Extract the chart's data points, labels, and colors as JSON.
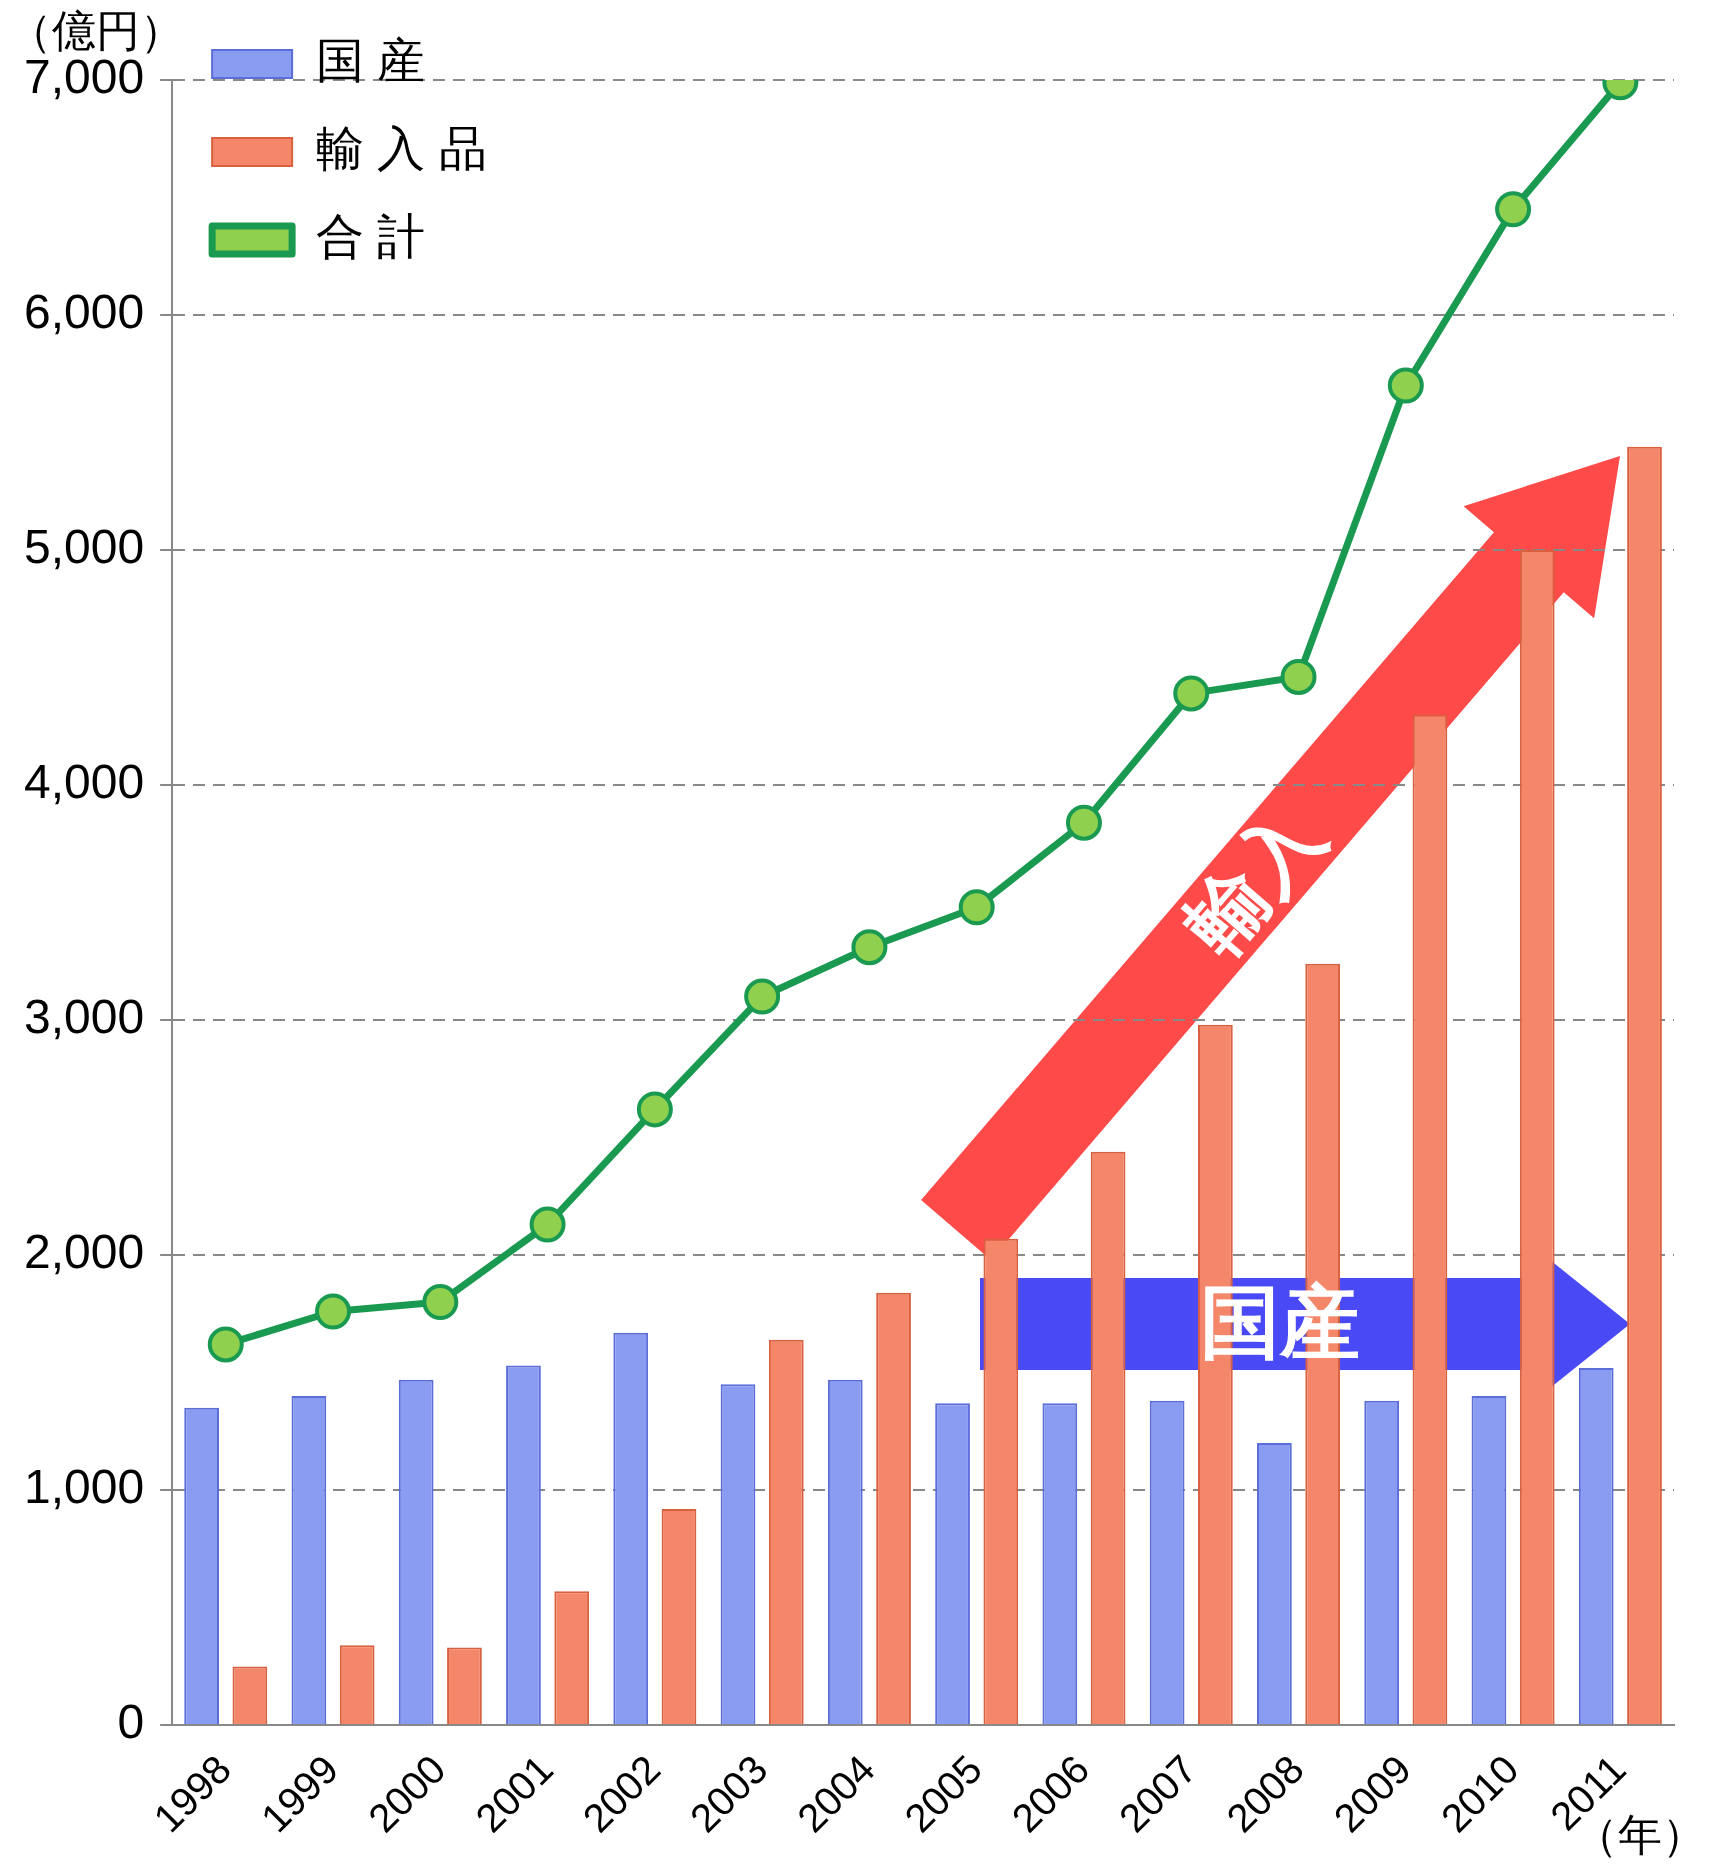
{
  "chart_data": {
    "type": "bar",
    "ylabel": "（億円）",
    "xlabel": "（年）",
    "categories": [
      "1998",
      "1999",
      "2000",
      "2001",
      "2002",
      "2003",
      "2004",
      "2005",
      "2006",
      "2007",
      "2008",
      "2009",
      "2010",
      "2011"
    ],
    "series": [
      {
        "name": "国 産",
        "color": "#8a9cf2",
        "values": [
          1350,
          1400,
          1470,
          1530,
          1670,
          1450,
          1470,
          1370,
          1370,
          1380,
          1200,
          1380,
          1400,
          1520
        ]
      },
      {
        "name": "輸 入 品",
        "color": "#f4876a",
        "values": [
          250,
          340,
          330,
          570,
          920,
          1640,
          1840,
          2070,
          2440,
          2980,
          3240,
          4300,
          5000,
          5440
        ]
      },
      {
        "name": "合 計",
        "type": "line",
        "color": "#1a9a50",
        "values": [
          1620,
          1760,
          1800,
          2130,
          2620,
          3100,
          3310,
          3480,
          3840,
          4390,
          4460,
          5700,
          6450,
          6990
        ]
      }
    ],
    "ylim": [
      0,
      7000
    ],
    "yticks": [
      0,
      {
        "value": 1000,
        "label": "1,000"
      },
      {
        "value": 2000,
        "label": "2,000"
      },
      {
        "value": 3000,
        "label": "3,000"
      },
      {
        "value": 4000,
        "label": "4,000"
      },
      {
        "value": 5000,
        "label": "5,000"
      },
      {
        "value": 6000,
        "label": "6,000"
      },
      {
        "value": 7000,
        "label": "7,000"
      }
    ],
    "grid": "y",
    "legend": "top left",
    "marker": "circle",
    "line_style": "solid",
    "annotations": [
      "輸入",
      "国産"
    ]
  }
}
